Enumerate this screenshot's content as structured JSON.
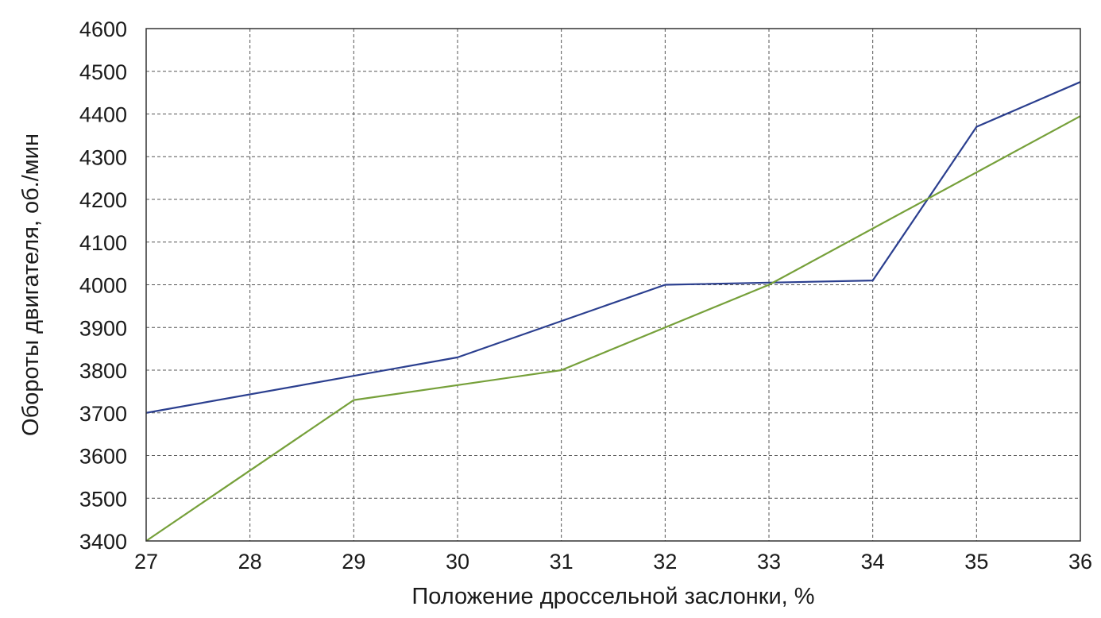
{
  "chart_data": {
    "type": "line",
    "title": "",
    "xlabel": "Положение дроссельной заслонки, %",
    "ylabel": "Обороты двигателя, об./мин",
    "xlim": [
      27,
      36
    ],
    "ylim": [
      3400,
      4600
    ],
    "x_ticks": [
      27,
      28,
      29,
      30,
      31,
      32,
      33,
      34,
      35,
      36
    ],
    "y_ticks": [
      3400,
      3500,
      3600,
      3700,
      3800,
      3900,
      4000,
      4100,
      4200,
      4300,
      4400,
      4500,
      4600
    ],
    "grid": true,
    "legend": "none",
    "series": [
      {
        "color": "#2b3f8f",
        "x": [
          27,
          30,
          32,
          34,
          35,
          36
        ],
        "y": [
          3700,
          3830,
          4000,
          4010,
          4370,
          4475
        ]
      },
      {
        "color": "#76a03a",
        "x": [
          27,
          29,
          31,
          33,
          36
        ],
        "y": [
          3400,
          3730,
          3800,
          4000,
          4395
        ]
      }
    ]
  }
}
